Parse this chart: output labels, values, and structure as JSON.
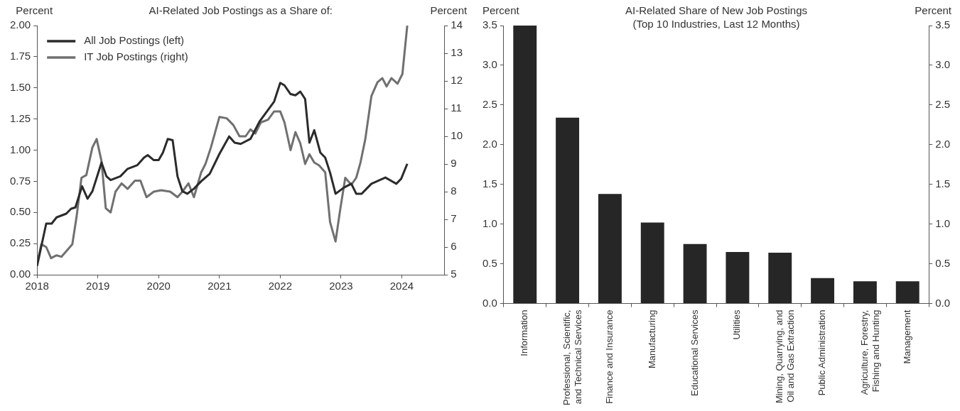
{
  "chart_data": [
    {
      "type": "line",
      "title": "AI-Related Job Postings as a Share of:",
      "ylabel": "Percent",
      "y2label": "Percent",
      "xlim": [
        2018,
        2024.7
      ],
      "xticks": [
        2018,
        2019,
        2020,
        2021,
        2022,
        2023,
        2024
      ],
      "ylim": [
        0,
        2
      ],
      "yticks": [
        {
          "value": 0,
          "label": "0.00"
        },
        0.25,
        {
          "value": 0.5,
          "label": "0.50"
        },
        0.75,
        {
          "value": 1,
          "label": "1.00"
        },
        1.25,
        {
          "value": 1.5,
          "label": "1.50"
        },
        1.75,
        {
          "value": 2,
          "label": "2.00"
        }
      ],
      "y2lim": [
        5,
        14
      ],
      "y2ticks": [
        5,
        6,
        7,
        8,
        9,
        10,
        11,
        12,
        13,
        14
      ],
      "grid": false,
      "legend": "top left",
      "series": [
        {
          "name": "All Job Postings (left)",
          "color": "#2b2b2b",
          "x": [
            2018.0,
            2018.15,
            2018.24,
            2018.32,
            2018.48,
            2018.56,
            2018.63,
            2018.74,
            2018.83,
            2018.91,
            2019.06,
            2019.14,
            2019.21,
            2019.37,
            2019.49,
            2019.65,
            2019.76,
            2019.82,
            2019.92,
            2020.0,
            2020.07,
            2020.15,
            2020.23,
            2020.31,
            2020.39,
            2020.47,
            2020.58,
            2020.7,
            2020.84,
            2021.0,
            2021.16,
            2021.25,
            2021.35,
            2021.51,
            2021.66,
            2021.78,
            2021.9,
            2022.0,
            2022.07,
            2022.17,
            2022.25,
            2022.33,
            2022.41,
            2022.48,
            2022.56,
            2022.66,
            2022.74,
            2022.82,
            2022.91,
            2023.05,
            2023.17,
            2023.25,
            2023.34,
            2023.5,
            2023.73,
            2023.91,
            2023.99,
            2024.09
          ],
          "values": [
            0.07,
            0.41,
            0.41,
            0.46,
            0.49,
            0.53,
            0.54,
            0.71,
            0.61,
            0.67,
            0.9,
            0.79,
            0.76,
            0.79,
            0.85,
            0.88,
            0.94,
            0.96,
            0.92,
            0.92,
            0.98,
            1.09,
            1.08,
            0.79,
            0.67,
            0.65,
            0.69,
            0.75,
            0.81,
            0.97,
            1.11,
            1.06,
            1.05,
            1.09,
            1.23,
            1.31,
            1.39,
            1.54,
            1.52,
            1.45,
            1.44,
            1.47,
            1.41,
            1.06,
            1.16,
            0.98,
            0.94,
            0.82,
            0.65,
            0.7,
            0.73,
            0.65,
            0.65,
            0.73,
            0.78,
            0.73,
            0.77,
            0.89
          ]
        },
        {
          "name": "IT Job Postings (right)",
          "color": "#707070",
          "axis": "y2",
          "x": [
            2018.0,
            2018.07,
            2018.15,
            2018.23,
            2018.32,
            2018.4,
            2018.5,
            2018.58,
            2018.65,
            2018.73,
            2018.81,
            2018.91,
            2018.98,
            2019.06,
            2019.13,
            2019.21,
            2019.29,
            2019.39,
            2019.49,
            2019.61,
            2019.7,
            2019.8,
            2019.92,
            2020.04,
            2020.19,
            2020.31,
            2020.39,
            2020.49,
            2020.58,
            2020.7,
            2020.77,
            2020.86,
            2021.0,
            2021.12,
            2021.23,
            2021.33,
            2021.43,
            2021.51,
            2021.59,
            2021.68,
            2021.8,
            2021.9,
            2022.0,
            2022.07,
            2022.17,
            2022.25,
            2022.33,
            2022.41,
            2022.48,
            2022.56,
            2022.64,
            2022.74,
            2022.82,
            2022.91,
            2022.99,
            2023.07,
            2023.17,
            2023.25,
            2023.32,
            2023.4,
            2023.5,
            2023.6,
            2023.68,
            2023.75,
            2023.83,
            2023.93,
            2024.01,
            2024.09
          ],
          "values": [
            5.4,
            6.1,
            6.0,
            5.6,
            5.7,
            5.65,
            5.9,
            6.1,
            7.1,
            8.5,
            8.6,
            9.6,
            9.9,
            9.1,
            7.4,
            7.25,
            8.0,
            8.3,
            8.1,
            8.4,
            8.4,
            7.8,
            8.0,
            8.05,
            8.0,
            7.8,
            8.0,
            8.3,
            7.8,
            8.7,
            9.0,
            9.6,
            10.7,
            10.65,
            10.4,
            10.0,
            10.0,
            10.25,
            10.1,
            10.5,
            10.6,
            10.9,
            10.9,
            10.5,
            9.5,
            10.15,
            9.75,
            9.0,
            9.35,
            9.05,
            8.95,
            8.7,
            6.9,
            6.2,
            7.4,
            8.5,
            8.25,
            8.5,
            9.05,
            9.9,
            11.45,
            11.95,
            12.1,
            11.8,
            12.1,
            11.9,
            12.25,
            14.0
          ]
        }
      ]
    },
    {
      "type": "bar",
      "title": "AI-Related Share of New Job Postings\n(Top 10 Industries, Last 12 Months)",
      "ylabel": "Percent",
      "y2label": "Percent",
      "categories": [
        "Information",
        "Professional, Scientific,\nand Technical Services",
        "Finance and Insurance",
        "Manufacturing",
        "Educational Services",
        "Utilities",
        "Mining, Quarrying, and\nOil and Gas Extraction",
        "Public Administration",
        "Agriculture, Forestry,\nFishing and Hunting",
        "Management"
      ],
      "values": [
        3.5,
        2.34,
        1.38,
        1.02,
        0.75,
        0.65,
        0.64,
        0.32,
        0.28,
        0.28
      ],
      "color": "#262626",
      "ylim": [
        0,
        3.5
      ],
      "yticks": [
        {
          "value": 0,
          "label": "0.0"
        },
        0.5,
        {
          "value": 1,
          "label": "1.0"
        },
        1.5,
        {
          "value": 2,
          "label": "2.0"
        },
        2.5,
        {
          "value": 3,
          "label": "3.0"
        },
        3.5
      ],
      "y2lim": [
        0,
        3.5
      ],
      "y2ticks": [
        {
          "value": 0,
          "label": "0.0"
        },
        0.5,
        {
          "value": 1,
          "label": "1.0"
        },
        1.5,
        {
          "value": 2,
          "label": "2.0"
        },
        2.5,
        {
          "value": 3,
          "label": "3.0"
        },
        3.5
      ],
      "grid": false
    }
  ]
}
